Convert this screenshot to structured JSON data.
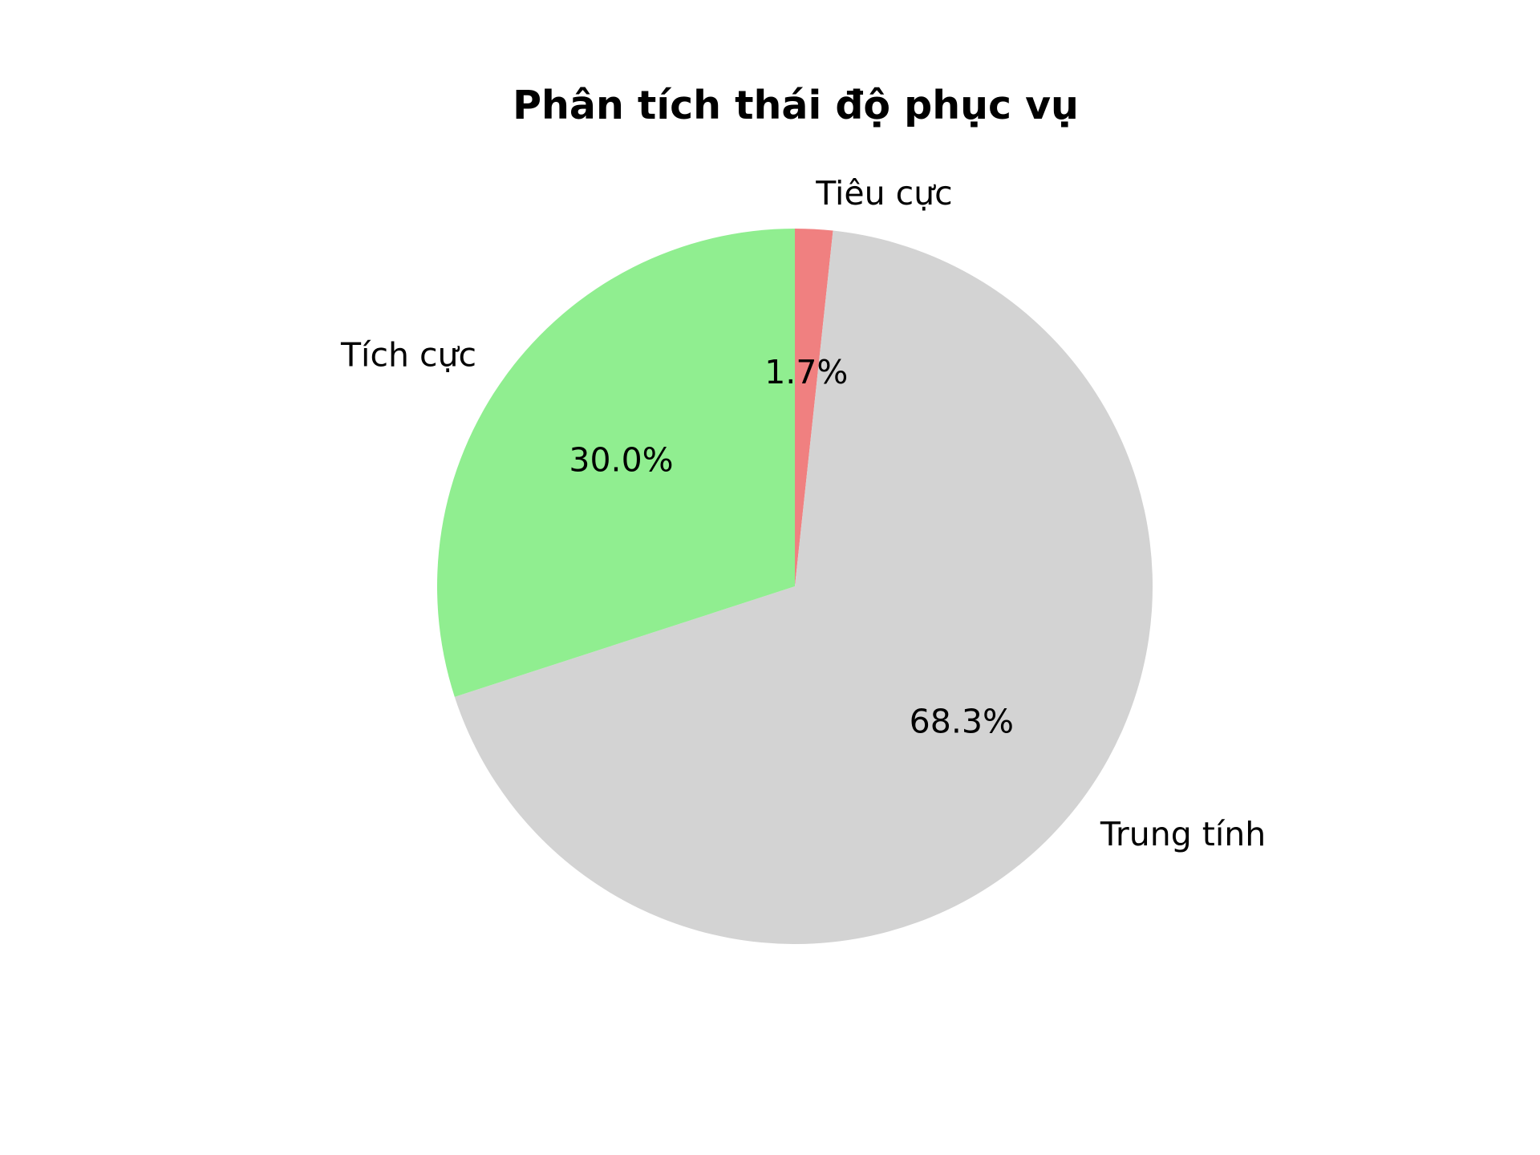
{
  "chart_data": {
    "type": "pie",
    "title": "Phân tích thái độ phục vụ",
    "start_angle_deg": 90,
    "direction": "clockwise",
    "slices": [
      {
        "label": "Tiêu cực",
        "value": 1.7,
        "pct_label": "1.7%",
        "color": "#f08080"
      },
      {
        "label": "Trung tính",
        "value": 68.3,
        "pct_label": "68.3%",
        "color": "#d3d3d3"
      },
      {
        "label": "Tích cực",
        "value": 30.0,
        "pct_label": "30.0%",
        "color": "#90ee90"
      }
    ]
  }
}
